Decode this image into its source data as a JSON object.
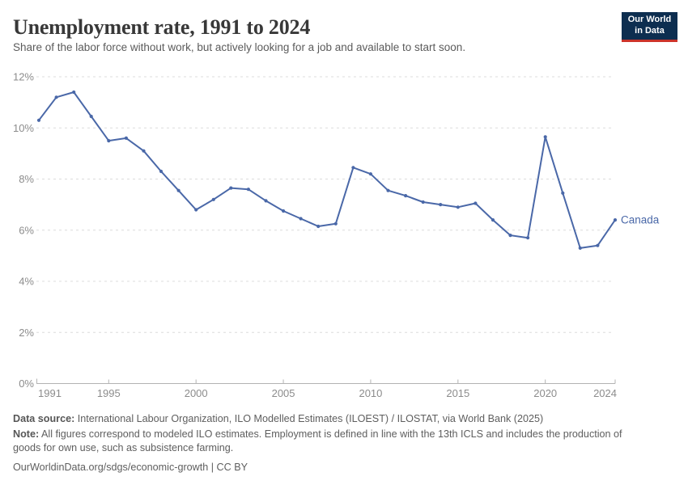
{
  "header": {
    "title": "Unemployment rate, 1991 to 2024",
    "subtitle": "Share of the labor force without work, but actively looking for a job and available to start soon.",
    "logo": {
      "line1": "Our World",
      "line2": "in Data",
      "bg_color": "#0d2e50",
      "accent_color": "#cc342a"
    }
  },
  "chart_data": {
    "type": "line",
    "title": "Unemployment rate, 1991 to 2024",
    "xlabel": "",
    "ylabel": "",
    "xlim": [
      1991,
      2024
    ],
    "ylim": [
      0,
      12
    ],
    "x_ticks": [
      1991,
      1995,
      2000,
      2005,
      2010,
      2015,
      2020,
      2024
    ],
    "y_ticks": [
      0,
      2,
      4,
      6,
      8,
      10,
      12
    ],
    "y_tick_suffix": "%",
    "grid": "horizontal-dashed",
    "legend_position": "end-of-line-label",
    "colors": {
      "gridline": "#dcdcdc",
      "axis_line": "#b3b3b3",
      "tick_label": "#8c8c8c"
    },
    "series": [
      {
        "name": "Canada",
        "color": "#4a68a8",
        "x": [
          1991,
          1992,
          1993,
          1994,
          1995,
          1996,
          1997,
          1998,
          1999,
          2000,
          2001,
          2002,
          2003,
          2004,
          2005,
          2006,
          2007,
          2008,
          2009,
          2010,
          2011,
          2012,
          2013,
          2014,
          2015,
          2016,
          2017,
          2018,
          2019,
          2020,
          2021,
          2022,
          2023,
          2024
        ],
        "values": [
          10.3,
          11.2,
          11.4,
          10.45,
          9.5,
          9.6,
          9.1,
          8.3,
          7.55,
          6.8,
          7.2,
          7.65,
          7.6,
          7.15,
          6.75,
          6.45,
          6.15,
          6.25,
          8.45,
          8.2,
          7.55,
          7.35,
          7.1,
          7.0,
          6.9,
          7.05,
          6.4,
          5.8,
          5.7,
          9.65,
          7.45,
          5.3,
          5.4,
          6.4
        ]
      }
    ]
  },
  "footer": {
    "data_source_label": "Data source:",
    "data_source_text": "International Labour Organization, ILO Modelled Estimates (ILOEST) / ILOSTAT, via World Bank (2025)",
    "note_label": "Note:",
    "note_text": "All figures correspond to modeled ILO estimates. Employment is defined in line with the 13th ICLS and includes the production of goods for own use, such as subsistence farming.",
    "citation": {
      "url": "OurWorldinData.org/sdgs/economic-growth",
      "separator": "|",
      "license": "CC BY"
    }
  }
}
